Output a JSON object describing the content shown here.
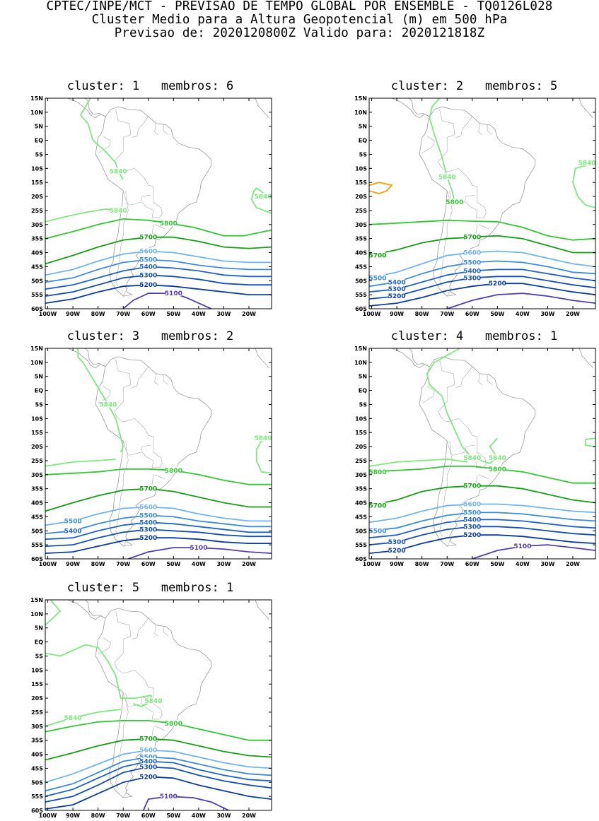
{
  "header": {
    "line1": "CPTEC/INPE/MCT - PREVISAO DE TEMPO GLOBAL POR ENSEMBLE - TQ0126L028",
    "line2": "Cluster Medio para a Altura Geopotencial (m) em 500 hPa",
    "line3": "Previsao de: 2020120800Z    Valido para: 2020121818Z"
  },
  "axes": {
    "lat_labels": [
      "15N",
      "10N",
      "5N",
      "EQ",
      "5S",
      "10S",
      "15S",
      "20S",
      "25S",
      "30S",
      "35S",
      "40S",
      "45S",
      "50S",
      "55S",
      "60S"
    ],
    "lon_labels": [
      "100W",
      "90W",
      "80W",
      "70W",
      "60W",
      "50W",
      "40W",
      "30W",
      "20W"
    ]
  },
  "contour_colors": {
    "5840": "#7de87d",
    "5800": "#32c832",
    "5700": "#14a014",
    "5600": "#6eb4f0",
    "5500": "#3c8cdc",
    "5400": "#1e64c8",
    "5300": "#1450b4",
    "5200": "#0a3ca0",
    "5100": "#503cb4",
    "5880": "#f5a000"
  },
  "clusters": [
    {
      "title": "cluster: 1   membros: 6",
      "labels": [
        "5840",
        "5840",
        "5840",
        "5800",
        "5700",
        "5600",
        "5500",
        "5400",
        "5300",
        "5200",
        "5100"
      ]
    },
    {
      "title": "cluster: 2   membros: 5",
      "labels": [
        "5840",
        "5840",
        "5800",
        "5700",
        "5700",
        "5600",
        "5500",
        "5400",
        "5300",
        "5200",
        "5500",
        "5400",
        "5300",
        "5200"
      ]
    },
    {
      "title": "cluster: 3   membros: 2",
      "labels": [
        "5840",
        "5840",
        "5800",
        "5700",
        "5600",
        "5500",
        "5400",
        "5300",
        "5200",
        "5500",
        "5400",
        "5100"
      ]
    },
    {
      "title": "cluster: 4   membros: 1",
      "labels": [
        "5840",
        "5840",
        "5800",
        "5800",
        "5700",
        "5700",
        "5600",
        "5500",
        "5400",
        "5300",
        "5200",
        "5500",
        "5300",
        "5200",
        "5100",
        "5400"
      ]
    },
    {
      "title": "cluster: 5   membros: 1",
      "labels": [
        "5840",
        "5840",
        "5800",
        "5700",
        "5600",
        "5500",
        "5400",
        "5300",
        "5200",
        "5100"
      ]
    }
  ]
}
